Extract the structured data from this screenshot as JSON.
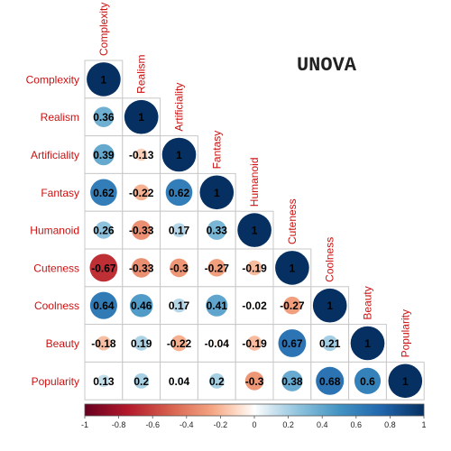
{
  "chart_data": {
    "type": "heatmap",
    "title": "UNOVA",
    "variables": [
      "Complexity",
      "Realism",
      "Artificiality",
      "Fantasy",
      "Humanoid",
      "Cuteness",
      "Coolness",
      "Beauty",
      "Popularity"
    ],
    "matrix": [
      [
        1
      ],
      [
        0.36,
        1
      ],
      [
        0.39,
        -0.13,
        1
      ],
      [
        0.62,
        -0.22,
        0.62,
        1
      ],
      [
        0.26,
        -0.33,
        0.17,
        0.33,
        1
      ],
      [
        -0.67,
        -0.33,
        -0.3,
        -0.27,
        -0.19,
        1
      ],
      [
        0.64,
        0.46,
        0.17,
        0.41,
        -0.02,
        -0.27,
        1
      ],
      [
        -0.18,
        0.19,
        -0.22,
        -0.04,
        -0.19,
        0.67,
        0.21,
        1
      ],
      [
        0.13,
        0.2,
        0.04,
        0.2,
        -0.3,
        0.38,
        0.68,
        0.6,
        1
      ]
    ],
    "colorbar": {
      "range": [
        -1,
        1
      ],
      "ticks": [
        "-1",
        "-0.8",
        "-0.6",
        "-0.4",
        "-0.2",
        "0",
        "0.2",
        "0.4",
        "0.6",
        "0.8",
        "1"
      ],
      "negative_color": "#67001F",
      "neutral_color": "#FFFFFF",
      "positive_color": "#053061"
    },
    "label_color": "#CC1111",
    "layout": "lower-triangle"
  }
}
